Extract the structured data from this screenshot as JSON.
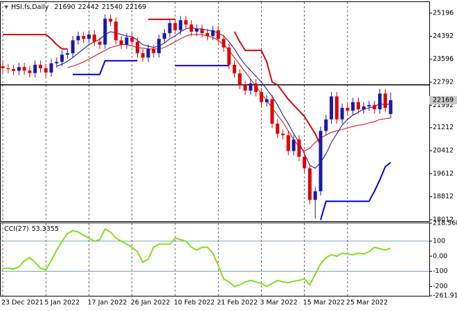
{
  "chart_data": [
    {
      "type": "candlestick",
      "title": "HSI.fs,Daily",
      "categories": [
        "23 Dec 2021",
        null,
        null,
        null,
        null,
        null,
        null,
        null,
        "5 Jan 2022",
        null,
        null,
        null,
        null,
        null,
        null,
        null,
        "17 Jan 2022",
        null,
        null,
        null,
        null,
        null,
        null,
        null,
        "26 Jan 2022",
        null,
        null,
        null,
        null,
        null,
        null,
        null,
        "10 Feb 2022",
        null,
        null,
        null,
        null,
        null,
        null,
        null,
        "21 Feb 2022",
        null,
        null,
        null,
        null,
        null,
        null,
        null,
        "3 Mar 2022",
        null,
        null,
        null,
        null,
        null,
        null,
        null,
        "15 Mar 2022",
        null,
        null,
        null,
        null,
        null,
        null,
        null,
        "25 Mar 2022",
        null,
        null,
        null,
        null,
        null,
        null,
        null,
        null
      ],
      "open": [
        23350,
        23280,
        23250,
        23190,
        23320,
        23200,
        23110,
        23400,
        23280,
        23130,
        23450,
        23500,
        23750,
        23800,
        24250,
        24400,
        24300,
        24450,
        24200,
        24100,
        25000,
        24900,
        24250,
        24100,
        24350,
        24200,
        23800,
        23650,
        23950,
        23800,
        24300,
        24500,
        24850,
        24600,
        24950,
        24800,
        24550,
        24650,
        24500,
        24400,
        24600,
        24300,
        24000,
        23400,
        23100,
        22700,
        22500,
        22750,
        22450,
        22100,
        22200,
        21350,
        21000,
        20950,
        20400,
        20800,
        20200,
        19800,
        18700,
        19000,
        21100,
        21500,
        22300,
        21500,
        21900,
        21800,
        22100,
        21850,
        21950,
        22000,
        21850,
        22400,
        21690
      ],
      "high": [
        23500,
        23430,
        23400,
        23470,
        23470,
        23350,
        23550,
        23550,
        23430,
        23600,
        23650,
        23900,
        23950,
        24400,
        24550,
        24550,
        24600,
        24600,
        24350,
        25150,
        25150,
        25050,
        24400,
        24500,
        24500,
        24350,
        23950,
        24100,
        24100,
        24450,
        24650,
        25000,
        25000,
        25100,
        25100,
        24950,
        24800,
        24800,
        24650,
        24750,
        24750,
        24450,
        24150,
        23550,
        23250,
        22850,
        22900,
        22900,
        22600,
        22350,
        22350,
        21500,
        21150,
        21100,
        20950,
        20950,
        20350,
        19950,
        19150,
        21250,
        21650,
        22450,
        22450,
        22050,
        22050,
        22250,
        22250,
        22100,
        22150,
        22150,
        22550,
        22550,
        22442
      ],
      "low": [
        23130,
        23100,
        23040,
        23040,
        23050,
        22960,
        22960,
        23130,
        22980,
        22980,
        23300,
        23350,
        23600,
        23650,
        24100,
        24150,
        24150,
        24050,
        23950,
        23950,
        24750,
        24100,
        23950,
        23950,
        24050,
        23650,
        23500,
        23500,
        23650,
        23650,
        24150,
        24350,
        24450,
        24450,
        24650,
        24400,
        24400,
        24350,
        24250,
        24250,
        24150,
        23850,
        23250,
        22950,
        22550,
        22350,
        22350,
        22300,
        21950,
        21950,
        21200,
        20850,
        20800,
        20250,
        20250,
        20050,
        19650,
        18550,
        18050,
        18850,
        20950,
        21350,
        21350,
        21350,
        21650,
        21650,
        21700,
        21700,
        21800,
        21700,
        21700,
        21750,
        21540
      ],
      "close": [
        23280,
        23250,
        23190,
        23320,
        23200,
        23110,
        23400,
        23280,
        23130,
        23450,
        23500,
        23750,
        23800,
        24250,
        24400,
        24300,
        24450,
        24200,
        24100,
        25000,
        24900,
        24250,
        24100,
        24350,
        24200,
        23800,
        23650,
        23950,
        23800,
        24300,
        24500,
        24850,
        24600,
        24950,
        24800,
        24550,
        24650,
        24500,
        24400,
        24600,
        24300,
        24000,
        23400,
        23100,
        22700,
        22500,
        22750,
        22450,
        22100,
        22200,
        21350,
        21000,
        20950,
        20400,
        20800,
        20200,
        19800,
        18700,
        19000,
        21100,
        21500,
        22300,
        21500,
        21900,
        21800,
        22100,
        21850,
        21950,
        22000,
        21850,
        22400,
        21900,
        22169
      ],
      "up_color": "#1a1aa6",
      "down_color": "#e00000",
      "overlays": [
        {
          "color": "#0a0a99",
          "values": [
            null,
            null,
            null,
            null,
            null,
            null,
            null,
            null,
            null,
            null,
            23350,
            23420,
            23520,
            23650,
            23800,
            23950,
            24100,
            24200,
            24280,
            24450,
            24550,
            24500,
            24450,
            24400,
            24380,
            24250,
            24100,
            24050,
            24000,
            24050,
            24150,
            24300,
            24400,
            24550,
            24650,
            24700,
            24650,
            24650,
            24600,
            24580,
            24500,
            24400,
            24200,
            23950,
            23650,
            23400,
            23200,
            23000,
            22800,
            22550,
            22300,
            22000,
            21650,
            21350,
            21000,
            20700,
            20300,
            19900,
            19800,
            20000,
            20300,
            20700,
            21000,
            21300,
            21500,
            21650,
            21750,
            21850,
            21900,
            21950,
            22050,
            22000,
            22050
          ]
        },
        {
          "color": "#dd0000",
          "values": [
            null,
            null,
            null,
            null,
            null,
            null,
            null,
            null,
            null,
            null,
            null,
            null,
            23300,
            23350,
            23420,
            23500,
            23600,
            23700,
            23800,
            23900,
            24000,
            24050,
            24100,
            24100,
            24050,
            24000,
            23980,
            23950,
            23950,
            23950,
            24000,
            24100,
            24200,
            24300,
            24400,
            24450,
            24450,
            24450,
            24400,
            24350,
            24250,
            24100,
            23900,
            23650,
            23400,
            23150,
            22900,
            22650,
            22400,
            22150,
            21900,
            21650,
            21400,
            21100,
            20800,
            20550,
            20400,
            20500,
            20700,
            20850,
            20950,
            21050,
            21100,
            21150,
            21200,
            21250,
            21300,
            21320,
            21380,
            21420,
            21500,
            21520,
            21550
          ]
        },
        {
          "color": "#e00000",
          "width": 2,
          "values": [
            24450,
            24450,
            24450,
            24450,
            24450,
            24450,
            24450,
            24450,
            24450,
            24300,
            24100,
            23950,
            23950,
            null,
            null,
            null,
            null,
            null,
            null,
            null,
            null,
            null,
            null,
            null,
            null,
            null,
            null,
            24980,
            24980,
            24980,
            24980,
            24980,
            24980,
            null,
            null,
            null,
            null,
            null,
            null,
            null,
            null,
            null,
            null,
            24550,
            24200,
            23900,
            23900,
            23900,
            23900,
            23500,
            22800,
            22700,
            22450,
            22200,
            22000,
            21800,
            21600,
            21300,
            21000,
            20600,
            null,
            null,
            null,
            null,
            null,
            null,
            null,
            null,
            null,
            null,
            null,
            null,
            null
          ]
        },
        {
          "color": "#0000dd",
          "width": 2,
          "values": [
            null,
            null,
            null,
            null,
            null,
            null,
            null,
            null,
            null,
            null,
            null,
            null,
            null,
            23060,
            23060,
            23060,
            23060,
            23060,
            23060,
            23540,
            23540,
            23540,
            23540,
            23540,
            23540,
            23540,
            null,
            null,
            null,
            null,
            null,
            null,
            23370,
            23370,
            23370,
            23370,
            23370,
            23370,
            23370,
            23370,
            23370,
            23370,
            23370,
            null,
            null,
            null,
            null,
            null,
            null,
            null,
            null,
            null,
            null,
            null,
            null,
            null,
            null,
            null,
            null,
            18000,
            18650,
            18650,
            18650,
            18650,
            18650,
            18650,
            18650,
            18650,
            18650,
            19000,
            19400,
            19850,
            20000
          ]
        }
      ],
      "hline": 22700,
      "ylim": [
        17960,
        25580
      ],
      "yticks": [
        18012,
        18812,
        19612,
        20412,
        21212,
        21992,
        22792,
        23596,
        24392,
        25196
      ],
      "grid": true
    },
    {
      "type": "line",
      "title": "CCI(27)",
      "series": [
        {
          "color": "#7fe01a",
          "values": [
            -80,
            -80,
            -85,
            -70,
            -30,
            -10,
            -40,
            -80,
            -90,
            -30,
            40,
            100,
            150,
            170,
            160,
            140,
            120,
            100,
            110,
            180,
            160,
            120,
            100,
            80,
            60,
            30,
            -40,
            -20,
            60,
            80,
            80,
            80,
            120,
            110,
            100,
            60,
            40,
            60,
            60,
            20,
            -60,
            -150,
            -170,
            -200,
            -190,
            -170,
            -160,
            -170,
            -180,
            -200,
            -180,
            -160,
            -170,
            -175,
            -165,
            -160,
            -150,
            -190,
            -120,
            -50,
            -10,
            10,
            0,
            20,
            15,
            10,
            20,
            15,
            30,
            60,
            50,
            40,
            53.3355
          ]
        }
      ],
      "levels": [
        100,
        -100
      ],
      "ylim": [
        -261.91,
        218.5687
      ],
      "yticks": [
        {
          "value": -261.91,
          "label": "-261.910"
        },
        -200,
        -100,
        {
          "value": 0,
          "label": "0.00"
        },
        100,
        218.5687
      ]
    }
  ]
}
